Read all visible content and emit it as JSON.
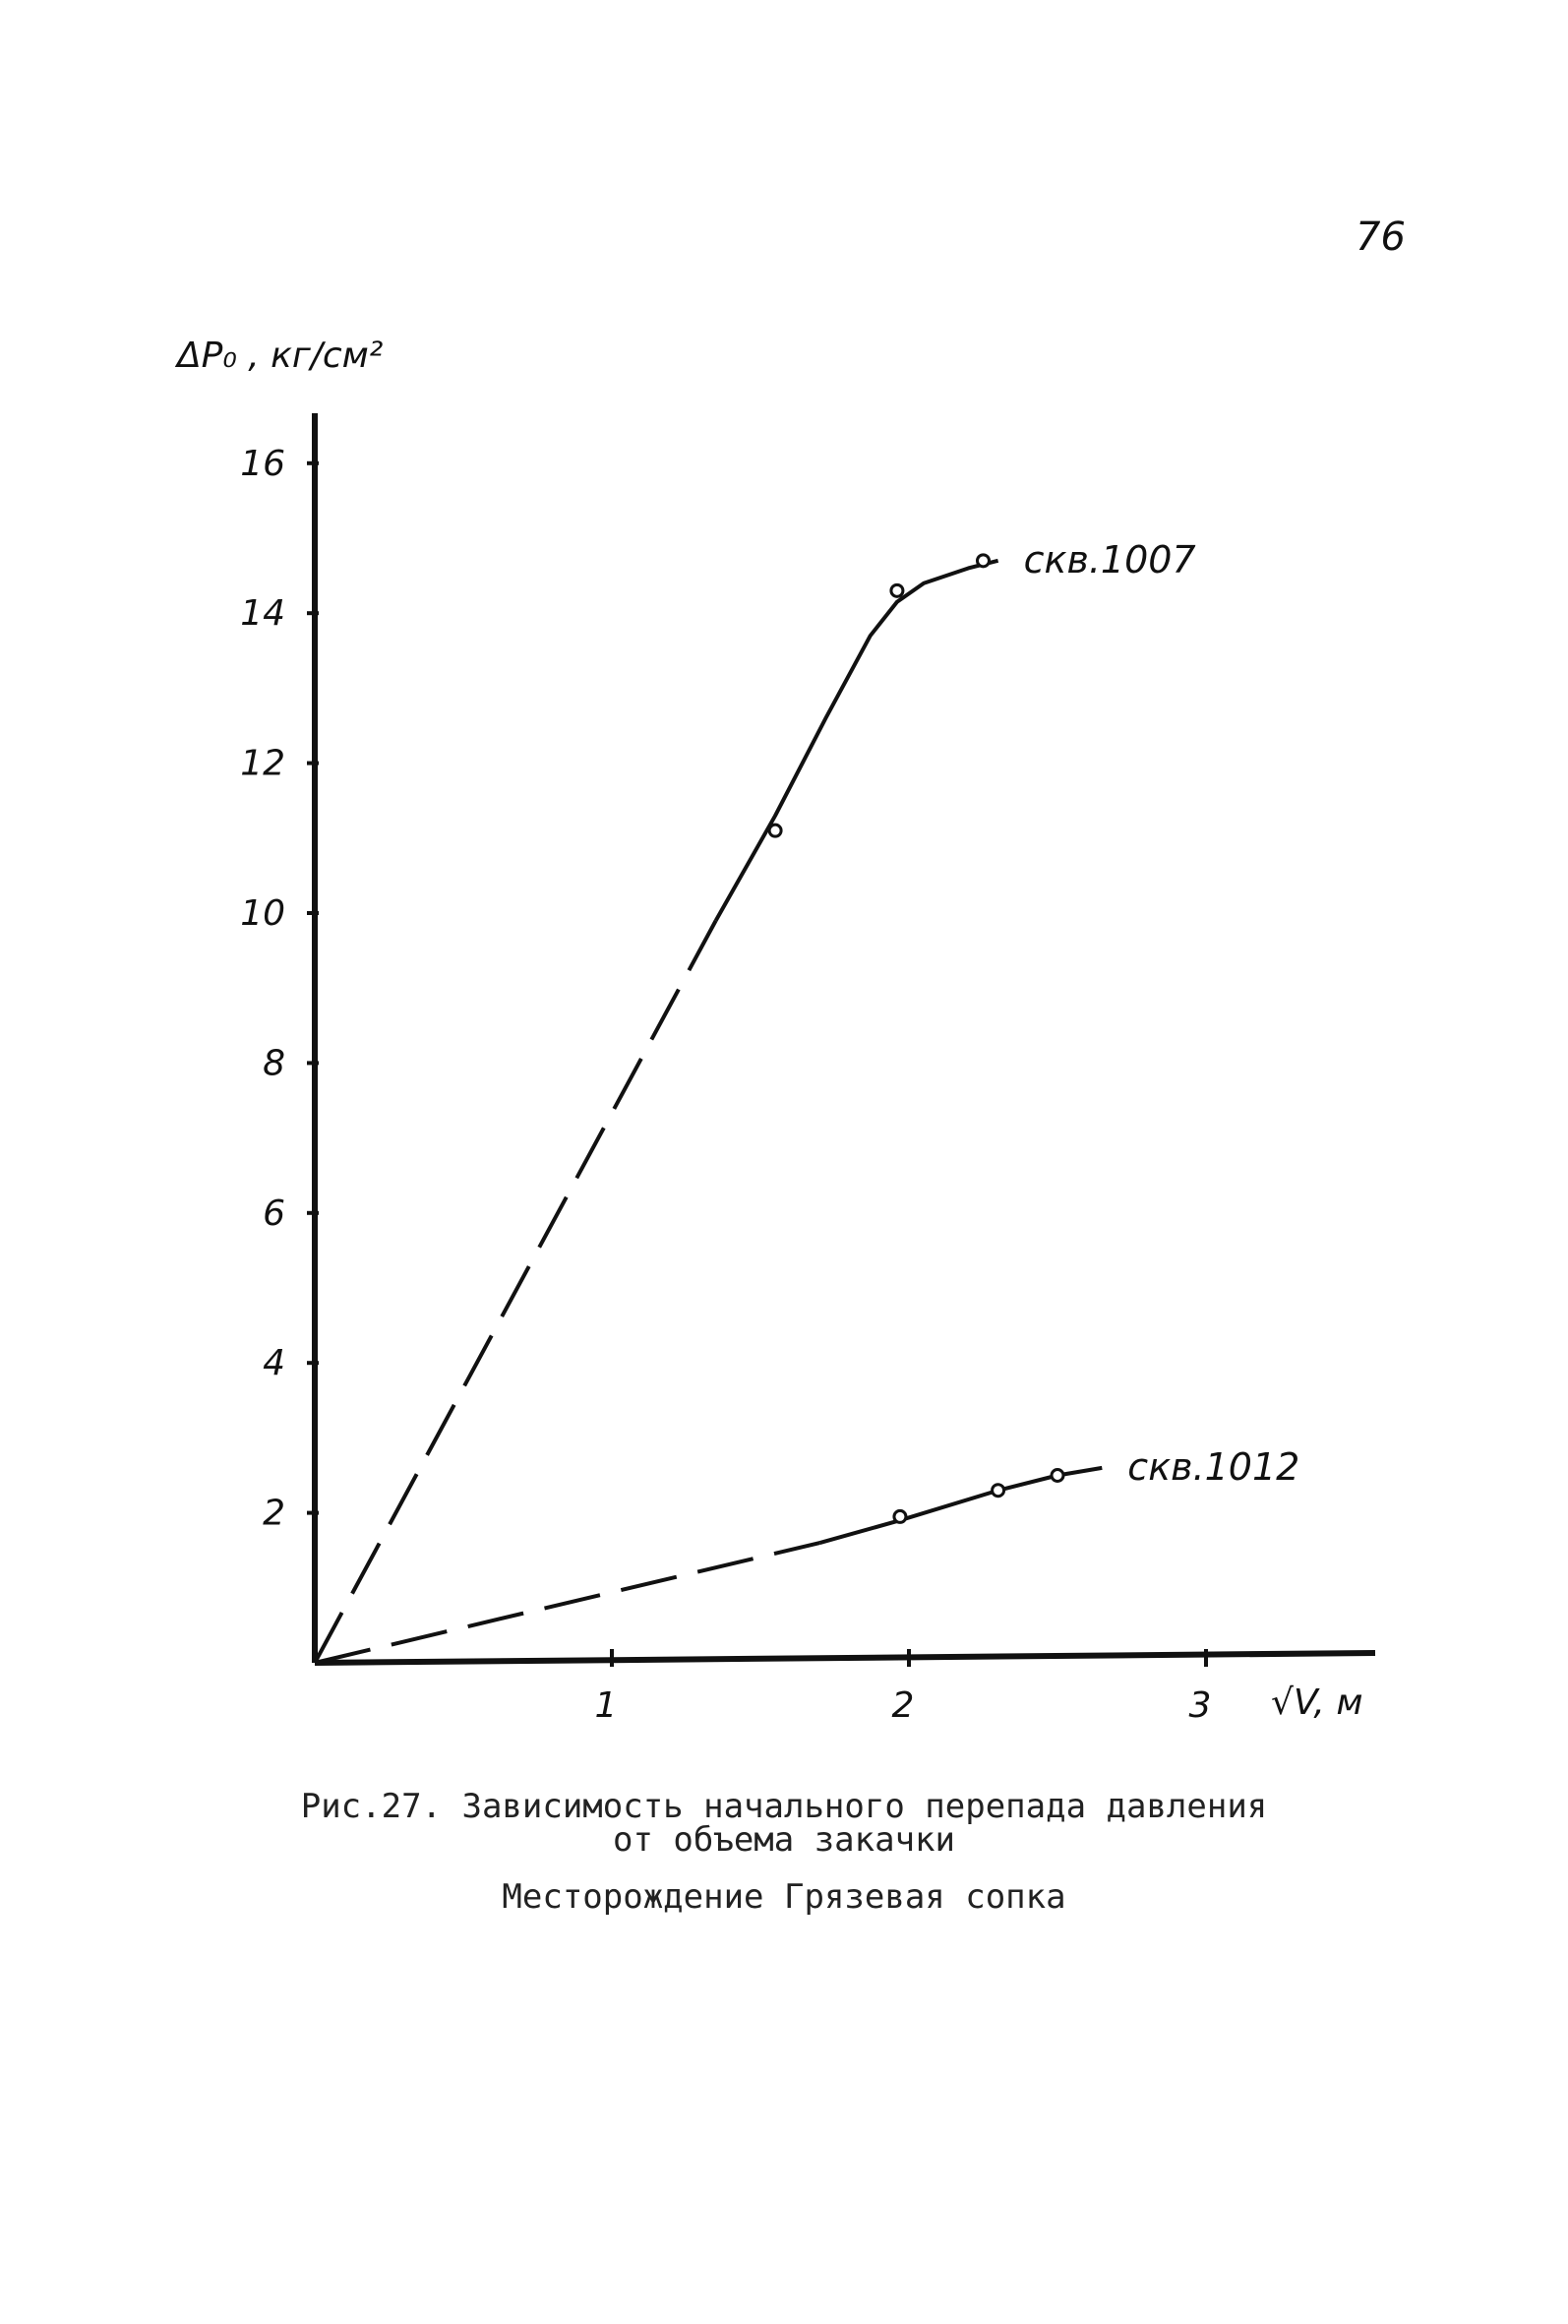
{
  "page_number": "76",
  "caption": {
    "line1": "Рис.27. Зависимость начального перепада давления",
    "line2": "от объема закачки",
    "field": "Месторождение  Грязевая сопка"
  },
  "chart_data": {
    "type": "line",
    "title": "",
    "xlabel": "√V, м",
    "ylabel": "ΔP₀ , кг/см²",
    "xlim": [
      0,
      3.55
    ],
    "ylim": [
      0,
      16.5
    ],
    "x_ticks": [
      {
        "value": 1,
        "label": "1"
      },
      {
        "value": 2,
        "label": "2"
      },
      {
        "value": 3,
        "label": "3"
      }
    ],
    "y_ticks": [
      {
        "value": 2,
        "label": "2"
      },
      {
        "value": 4,
        "label": "4"
      },
      {
        "value": 6,
        "label": "6"
      },
      {
        "value": 8,
        "label": "8"
      },
      {
        "value": 10,
        "label": "10"
      },
      {
        "value": 12,
        "label": "12"
      },
      {
        "value": 14,
        "label": "14"
      },
      {
        "value": 16,
        "label": "16"
      }
    ],
    "grid": false,
    "series": [
      {
        "name": "скв.1007",
        "extrapolated_line": [
          [
            0,
            0
          ],
          [
            1.35,
            9.9
          ]
        ],
        "fitted_curve": [
          [
            1.35,
            9.9
          ],
          [
            1.55,
            11.3
          ],
          [
            1.72,
            12.6
          ],
          [
            1.87,
            13.7
          ],
          [
            1.96,
            14.15
          ],
          [
            2.05,
            14.4
          ],
          [
            2.2,
            14.6
          ],
          [
            2.3,
            14.7
          ]
        ],
        "points": [
          [
            1.55,
            11.1
          ],
          [
            1.96,
            14.3
          ],
          [
            2.25,
            14.7
          ]
        ]
      },
      {
        "name": "скв.1012",
        "extrapolated_line": [
          [
            0,
            0
          ],
          [
            1.7,
            1.6
          ]
        ],
        "fitted_curve": [
          [
            1.7,
            1.6
          ],
          [
            1.97,
            1.9
          ],
          [
            2.3,
            2.3
          ],
          [
            2.5,
            2.5
          ],
          [
            2.65,
            2.6
          ]
        ],
        "points": [
          [
            1.97,
            1.95
          ],
          [
            2.3,
            2.3
          ],
          [
            2.5,
            2.5
          ]
        ]
      }
    ]
  }
}
